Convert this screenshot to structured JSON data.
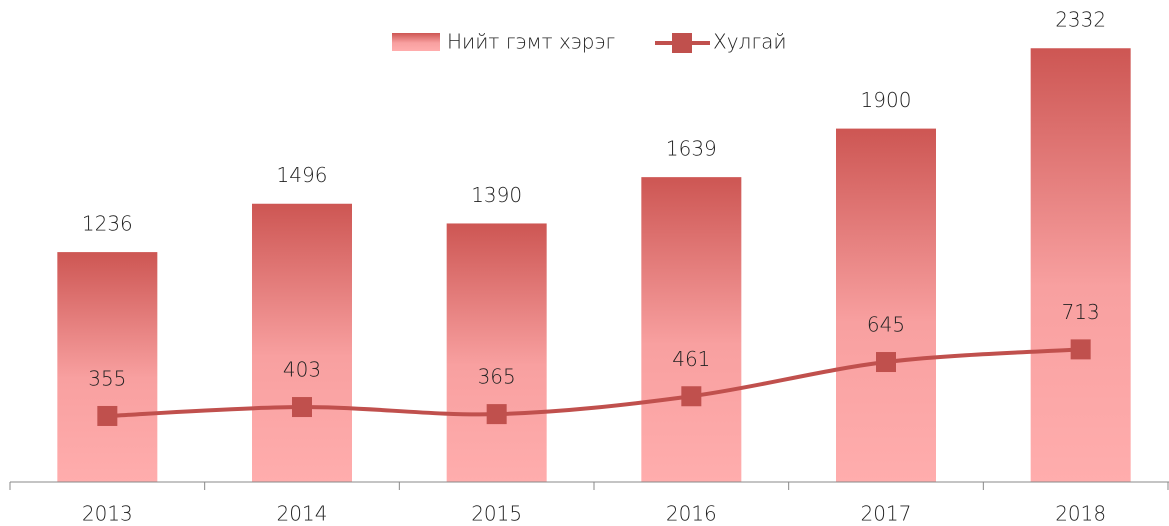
{
  "chart_data": {
    "type": "bar-line",
    "categories": [
      "2013",
      "2014",
      "2015",
      "2016",
      "2017",
      "2018"
    ],
    "series": [
      {
        "name": "Нийт гэмт хэрэг",
        "type": "bar",
        "color": "#cd5653",
        "values": [
          1236,
          1496,
          1390,
          1639,
          1900,
          2332
        ]
      },
      {
        "name": "Хулгай",
        "type": "line",
        "color": "#c0504d",
        "values": [
          355,
          403,
          365,
          461,
          645,
          713
        ]
      }
    ],
    "ylim": [
      0,
      2500
    ]
  }
}
